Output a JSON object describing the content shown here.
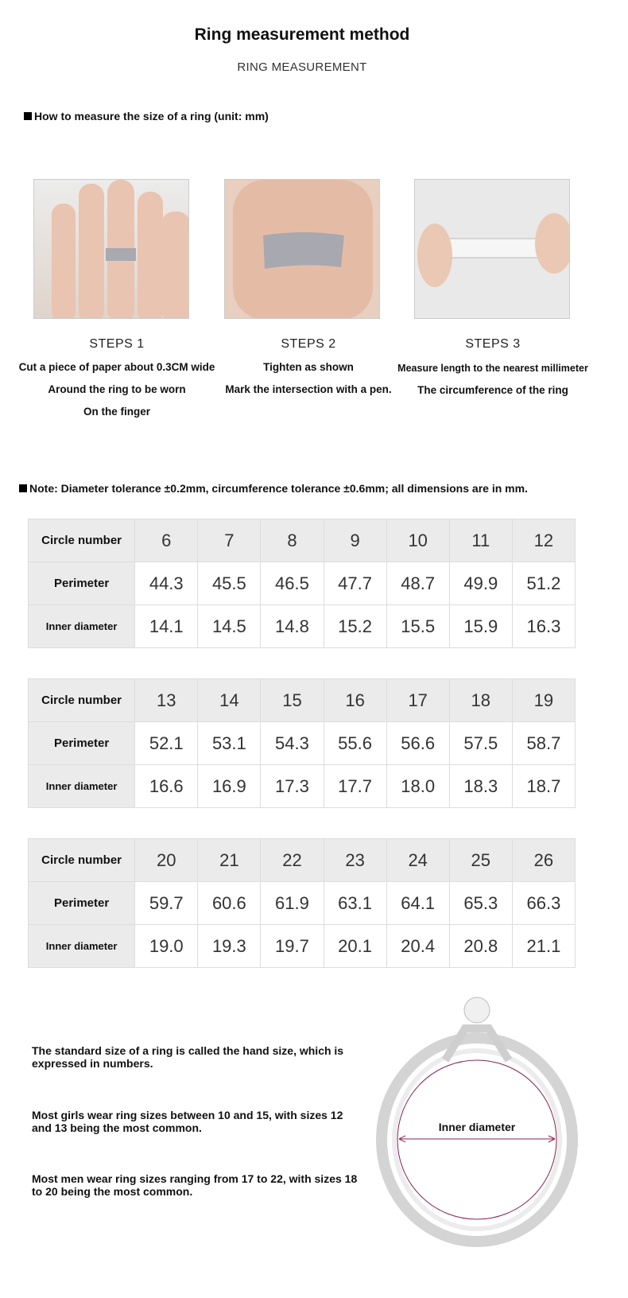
{
  "header": {
    "title": "Ring measurement method",
    "subtitle": "RING MEASUREMENT"
  },
  "howto": "How to measure the size of a ring (unit: mm)",
  "steps": [
    {
      "title": "STEPS 1",
      "lines": [
        "Cut a piece of paper about 0.3CM wide",
        "Around the ring to be worn",
        "On the finger"
      ]
    },
    {
      "title": "STEPS 2",
      "lines": [
        "Tighten as shown",
        "Mark the intersection with a pen."
      ]
    },
    {
      "title": "STEPS 3",
      "lines": [
        "Measure length to the nearest millimeter",
        "The circumference of the ring"
      ]
    }
  ],
  "note": "Note: Diameter tolerance ±0.2mm, circumference tolerance ±0.6mm; all dimensions are in mm.",
  "row_labels": [
    "Circle number",
    "Perimeter",
    "Inner diameter"
  ],
  "tables": [
    {
      "sizes": [
        "6",
        "7",
        "8",
        "9",
        "10",
        "11",
        "12"
      ],
      "perimeter": [
        "44.3",
        "45.5",
        "46.5",
        "47.7",
        "48.7",
        "49.9",
        "51.2"
      ],
      "diameter": [
        "14.1",
        "14.5",
        "14.8",
        "15.2",
        "15.5",
        "15.9",
        "16.3"
      ]
    },
    {
      "sizes": [
        "13",
        "14",
        "15",
        "16",
        "17",
        "18",
        "19"
      ],
      "perimeter": [
        "52.1",
        "53.1",
        "54.3",
        "55.6",
        "56.6",
        "57.5",
        "58.7"
      ],
      "diameter": [
        "16.6",
        "16.9",
        "17.3",
        "17.7",
        "18.0",
        "18.3",
        "18.7"
      ]
    },
    {
      "sizes": [
        "20",
        "21",
        "22",
        "23",
        "24",
        "25",
        "26"
      ],
      "perimeter": [
        "59.7",
        "60.6",
        "61.9",
        "63.1",
        "64.1",
        "65.3",
        "66.3"
      ],
      "diameter": [
        "19.0",
        "19.3",
        "19.7",
        "20.1",
        "20.4",
        "20.8",
        "21.1"
      ]
    }
  ],
  "info": [
    "The standard size of a ring is called the hand size, which is expressed in numbers.",
    "Most girls wear ring sizes between 10 and 15, with sizes 12 and 13 being the most common.",
    "Most men wear ring sizes ranging from 17 to 22, with sizes 18 to 20 being the most common."
  ],
  "ring_label": "Inner diameter"
}
